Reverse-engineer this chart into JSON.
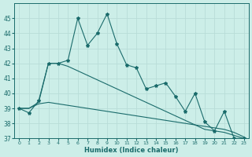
{
  "x": [
    0,
    1,
    2,
    3,
    4,
    5,
    6,
    7,
    8,
    9,
    10,
    11,
    12,
    13,
    14,
    15,
    16,
    17,
    18,
    19,
    20,
    21,
    22,
    23
  ],
  "line1": [
    39,
    38.7,
    39.5,
    42,
    42,
    42.2,
    45,
    43.2,
    44,
    45.3,
    43.3,
    41.9,
    41.7,
    40.3,
    40.5,
    40.7,
    39.8,
    38.8,
    40,
    38.1,
    37.5,
    38.8,
    37,
    37
  ],
  "line2": [
    39,
    39.0,
    39.4,
    42,
    42,
    41.8,
    41.5,
    41.2,
    40.9,
    40.6,
    40.3,
    40.0,
    39.7,
    39.4,
    39.1,
    38.8,
    38.5,
    38.2,
    37.9,
    37.6,
    37.5,
    37.4,
    37.2,
    37.0
  ],
  "line3": [
    39,
    39.0,
    39.3,
    39.4,
    39.3,
    39.2,
    39.1,
    39.0,
    38.9,
    38.8,
    38.7,
    38.6,
    38.5,
    38.4,
    38.3,
    38.2,
    38.1,
    38.0,
    37.9,
    37.8,
    37.7,
    37.6,
    37.4,
    37.1
  ],
  "bg_color": "#cceee8",
  "line_color": "#1a6b6b",
  "grid_color": "#b8ddd8",
  "xlabel": "Humidex (Indice chaleur)",
  "ylim": [
    37,
    46
  ],
  "xlim": [
    -0.5,
    23.5
  ],
  "yticks": [
    37,
    38,
    39,
    40,
    41,
    42,
    43,
    44,
    45
  ],
  "xticks": [
    0,
    1,
    2,
    3,
    4,
    5,
    6,
    7,
    8,
    9,
    10,
    11,
    12,
    13,
    14,
    15,
    16,
    17,
    18,
    19,
    20,
    21,
    22,
    23
  ]
}
